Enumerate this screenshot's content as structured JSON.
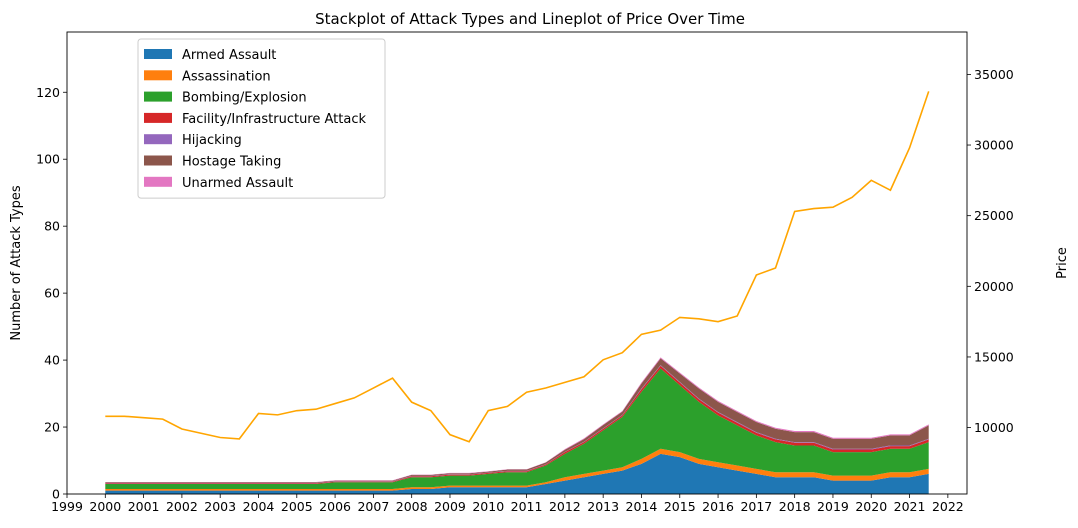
{
  "chart_data": {
    "type": "area",
    "title": "Stackplot of Attack Types and Lineplot of Price Over Time",
    "xlabel": "",
    "ylabel": "Number of Attack Types",
    "y2label": "Price",
    "xlim": [
      1999.0,
      2022.5
    ],
    "ylim": [
      0,
      138
    ],
    "y2lim": [
      5300,
      38000
    ],
    "x_ticks": [
      "1999",
      "2000",
      "2001",
      "2002",
      "2003",
      "2004",
      "2005",
      "2006",
      "2007",
      "2008",
      "2009",
      "2010",
      "2011",
      "2012",
      "2013",
      "2014",
      "2015",
      "2016",
      "2017",
      "2018",
      "2019",
      "2020",
      "2021",
      "2022"
    ],
    "y_ticks": [
      "0",
      "20",
      "40",
      "60",
      "80",
      "100",
      "120"
    ],
    "y2_ticks": [
      "10000",
      "15000",
      "20000",
      "25000",
      "30000",
      "35000"
    ],
    "grid": false,
    "legend_position": "upper-left",
    "x": [
      2000.0,
      2000.5,
      2001.0,
      2001.5,
      2002.0,
      2002.5,
      2003.0,
      2003.5,
      2004.0,
      2004.5,
      2005.0,
      2005.5,
      2006.0,
      2006.5,
      2007.0,
      2007.5,
      2008.0,
      2008.5,
      2009.0,
      2009.5,
      2010.0,
      2010.5,
      2011.0,
      2011.5,
      2012.0,
      2012.5,
      2013.0,
      2013.5,
      2014.0,
      2014.5,
      2015.0,
      2015.5,
      2016.0,
      2016.5,
      2017.0,
      2017.5,
      2018.0,
      2018.5,
      2019.0,
      2019.5,
      2020.0,
      2020.5,
      2021.0,
      2021.5
    ],
    "series": [
      {
        "name": "Armed Assault",
        "color": "#1f77b4",
        "values": [
          1,
          1,
          1,
          1,
          1,
          1,
          1,
          1,
          1,
          1,
          1,
          1,
          1,
          1,
          1,
          1,
          1.5,
          1.5,
          2,
          2,
          2,
          2,
          2,
          3,
          4,
          5,
          6,
          7,
          9,
          12,
          11,
          9,
          8,
          7,
          6,
          5,
          5,
          5,
          4,
          4,
          4,
          5,
          5,
          6
        ]
      },
      {
        "name": "Assassination",
        "color": "#ff7f0e",
        "values": [
          0.5,
          0.5,
          0.5,
          0.5,
          0.5,
          0.5,
          0.5,
          0.5,
          0.5,
          0.5,
          0.5,
          0.5,
          0.5,
          0.5,
          0.5,
          0.5,
          0.5,
          0.5,
          0.5,
          0.5,
          0.5,
          0.5,
          0.5,
          0.5,
          1,
          1,
          1,
          1,
          1.5,
          1.5,
          1.5,
          1.5,
          1.5,
          1.5,
          1.5,
          1.5,
          1.5,
          1.5,
          1.5,
          1.5,
          1.5,
          1.5,
          1.5,
          1.5
        ]
      },
      {
        "name": "Bombing/Explosion",
        "color": "#2ca02c",
        "values": [
          1.5,
          1.5,
          1.5,
          1.5,
          1.5,
          1.5,
          1.5,
          1.5,
          1.5,
          1.5,
          1.5,
          1.5,
          2,
          2,
          2,
          2,
          3,
          3,
          3,
          3,
          3.5,
          4,
          4,
          5,
          7,
          9,
          12,
          15,
          20,
          24,
          20,
          17,
          14,
          12,
          10,
          9,
          8,
          8,
          7,
          7,
          7,
          7,
          7,
          8
        ]
      },
      {
        "name": "Facility/Infrastructure Attack",
        "color": "#d62728",
        "values": [
          0.2,
          0.2,
          0.2,
          0.2,
          0.2,
          0.2,
          0.2,
          0.2,
          0.2,
          0.2,
          0.2,
          0.2,
          0.2,
          0.2,
          0.2,
          0.2,
          0.3,
          0.3,
          0.3,
          0.3,
          0.3,
          0.3,
          0.3,
          0.3,
          0.5,
          0.5,
          0.5,
          0.5,
          0.8,
          0.8,
          0.8,
          0.8,
          0.8,
          0.8,
          0.8,
          0.8,
          0.8,
          0.8,
          0.8,
          0.8,
          0.8,
          0.8,
          0.8,
          0.8
        ]
      },
      {
        "name": "Hijacking",
        "color": "#9467bd",
        "values": [
          0.1,
          0.1,
          0.1,
          0.1,
          0.1,
          0.1,
          0.1,
          0.1,
          0.1,
          0.1,
          0.1,
          0.1,
          0.1,
          0.1,
          0.1,
          0.1,
          0.1,
          0.1,
          0.1,
          0.1,
          0.1,
          0.1,
          0.1,
          0.1,
          0.1,
          0.1,
          0.1,
          0.1,
          0.2,
          0.2,
          0.2,
          0.2,
          0.2,
          0.2,
          0.2,
          0.2,
          0.2,
          0.2,
          0.2,
          0.2,
          0.2,
          0.2,
          0.2,
          0.2
        ]
      },
      {
        "name": "Hostage Taking",
        "color": "#8c564b",
        "values": [
          0.2,
          0.2,
          0.2,
          0.2,
          0.2,
          0.2,
          0.2,
          0.2,
          0.2,
          0.2,
          0.2,
          0.2,
          0.2,
          0.2,
          0.2,
          0.2,
          0.3,
          0.3,
          0.3,
          0.3,
          0.3,
          0.4,
          0.4,
          0.5,
          0.6,
          0.8,
          1,
          1,
          1.5,
          2,
          2.5,
          3,
          3,
          3,
          3,
          3,
          3,
          3,
          3,
          3,
          3,
          3,
          3,
          4
        ]
      },
      {
        "name": "Unarmed Assault",
        "color": "#e377c2",
        "values": [
          0.1,
          0.1,
          0.1,
          0.1,
          0.1,
          0.1,
          0.1,
          0.1,
          0.1,
          0.1,
          0.1,
          0.1,
          0.1,
          0.1,
          0.1,
          0.1,
          0.1,
          0.1,
          0.1,
          0.1,
          0.1,
          0.1,
          0.1,
          0.1,
          0.2,
          0.2,
          0.2,
          0.2,
          0.3,
          0.3,
          0.3,
          0.3,
          0.3,
          0.3,
          0.3,
          0.3,
          0.3,
          0.3,
          0.3,
          0.3,
          0.3,
          0.3,
          0.3,
          0.3
        ]
      }
    ],
    "price_series": {
      "axis": "right",
      "color": "#ffa500",
      "x": [
        2000.0,
        2000.5,
        2001.0,
        2001.5,
        2002.0,
        2002.5,
        2003.0,
        2003.5,
        2004.0,
        2004.5,
        2005.0,
        2005.5,
        2006.0,
        2006.5,
        2007.0,
        2007.5,
        2008.0,
        2008.5,
        2009.0,
        2009.5,
        2010.0,
        2010.5,
        2011.0,
        2011.5,
        2012.0,
        2012.5,
        2013.0,
        2013.5,
        2014.0,
        2014.5,
        2015.0,
        2015.5,
        2016.0,
        2016.5,
        2017.0,
        2017.5,
        2018.0,
        2018.5,
        2019.0,
        2019.5,
        2020.0,
        2020.5,
        2021.0,
        2021.5
      ],
      "values": [
        10800,
        10800,
        10700,
        10600,
        9900,
        9600,
        9300,
        9200,
        11000,
        10900,
        11200,
        11300,
        11700,
        12100,
        12800,
        13500,
        11800,
        11200,
        9500,
        9000,
        11200,
        11500,
        12500,
        12800,
        13200,
        13600,
        14800,
        15300,
        16600,
        16900,
        17800,
        17700,
        17500,
        17900,
        20800,
        21300,
        25300,
        25500,
        25600,
        26300,
        27500,
        26800,
        29800,
        33800
      ]
    }
  }
}
